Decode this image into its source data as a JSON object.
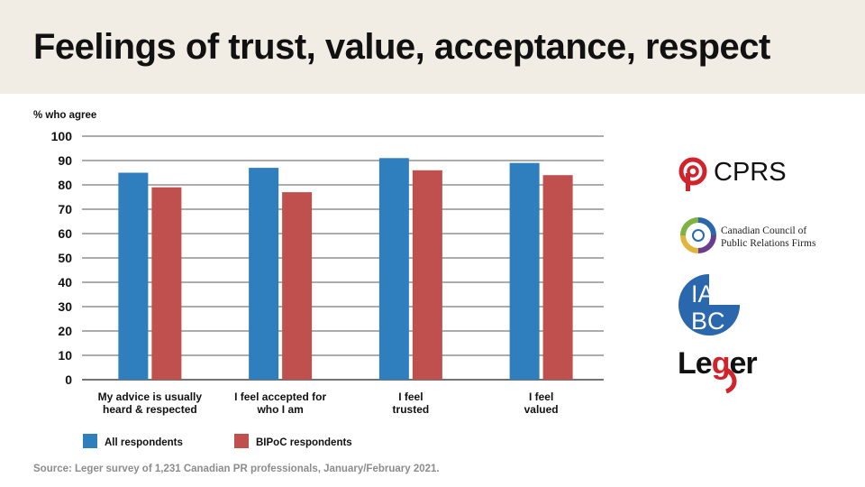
{
  "header": {
    "title": "Feelings of trust, value, acceptance, respect"
  },
  "chart_data": {
    "type": "bar",
    "title": "Feelings of trust, value, acceptance, respect",
    "ylabel": "% who agree",
    "xlabel": "",
    "ylim": [
      0,
      100
    ],
    "yticks": [
      0,
      10,
      20,
      30,
      40,
      50,
      60,
      70,
      80,
      90,
      100
    ],
    "grid": true,
    "legend_position": "bottom-left",
    "categories": [
      [
        "My advice is usually",
        "heard & respected"
      ],
      [
        "I feel accepted for",
        "who I am"
      ],
      [
        "I feel",
        "trusted"
      ],
      [
        "I feel",
        "valued"
      ]
    ],
    "series": [
      {
        "name": "All respondents",
        "color": "#2f7ebe",
        "values": [
          85,
          87,
          91,
          89
        ]
      },
      {
        "name": "BIPoC respondents",
        "color": "#c0504d",
        "values": [
          79,
          77,
          86,
          84
        ]
      }
    ]
  },
  "logos": {
    "cprs": {
      "text": "CPRS",
      "color": "#d2232a"
    },
    "cccprf": {
      "line1": "Canadian Council of",
      "line2": "Public Relations Firms"
    },
    "iabc": {
      "line1": "IA",
      "line2": "BC",
      "color": "#2a67ad"
    },
    "leger": {
      "text_before": "Le",
      "text_g": "g",
      "text_after": "er",
      "accent": "#d2232a"
    }
  },
  "footer": {
    "source": "Source: Leger survey of 1,231 Canadian PR professionals, January/February 2021."
  }
}
